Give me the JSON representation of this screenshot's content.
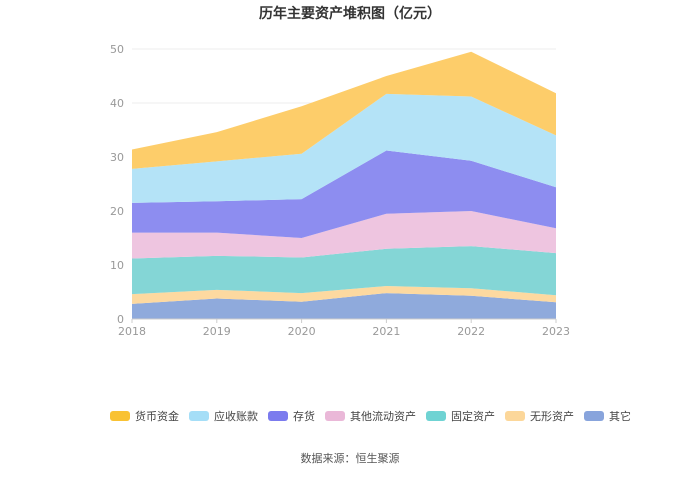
{
  "chart_data": {
    "type": "area",
    "stacked": true,
    "title": "历年主要资产堆积图（亿元）",
    "categories": [
      "2018",
      "2019",
      "2020",
      "2021",
      "2022",
      "2023"
    ],
    "ylim": [
      0,
      50
    ],
    "yticks": [
      0,
      10,
      20,
      30,
      40,
      50
    ],
    "grid": true,
    "legend_position": "bottom",
    "series": [
      {
        "name": "其它",
        "color": "#8faadc",
        "values": [
          2.8,
          3.8,
          3.2,
          4.8,
          4.3,
          3.1
        ]
      },
      {
        "name": "无形资产",
        "color": "#fdd9a0",
        "values": [
          1.8,
          1.6,
          1.6,
          1.3,
          1.4,
          1.3
        ]
      },
      {
        "name": "固定资产",
        "color": "#84d6d6",
        "values": [
          6.6,
          6.3,
          6.6,
          6.9,
          7.8,
          7.8
        ]
      },
      {
        "name": "其他流动资产",
        "color": "#eec5e0",
        "values": [
          4.8,
          4.3,
          3.6,
          6.5,
          6.5,
          4.6
        ]
      },
      {
        "name": "存货",
        "color": "#8d8df0",
        "values": [
          5.5,
          5.8,
          7.2,
          11.7,
          9.3,
          7.6
        ]
      },
      {
        "name": "应收账款",
        "color": "#b4e3f7",
        "values": [
          6.3,
          7.4,
          8.4,
          10.5,
          11.9,
          9.6
        ]
      },
      {
        "name": "货币资金",
        "color": "#fdcd6a",
        "values": [
          3.6,
          5.4,
          8.8,
          3.3,
          8.3,
          7.8
        ]
      }
    ],
    "legend_order": [
      "货币资金",
      "应收账款",
      "存货",
      "其他流动资产",
      "固定资产",
      "无形资产",
      "其它"
    ],
    "legend_colors": {
      "货币资金": "#f9c233",
      "应收账款": "#a5def7",
      "存货": "#7b7bee",
      "其他流动资产": "#eab8d8",
      "固定资产": "#6fd3d3",
      "无形资产": "#fcd79a",
      "其它": "#88a4dc"
    }
  },
  "footer": {
    "source": "数据来源：恒生聚源"
  }
}
